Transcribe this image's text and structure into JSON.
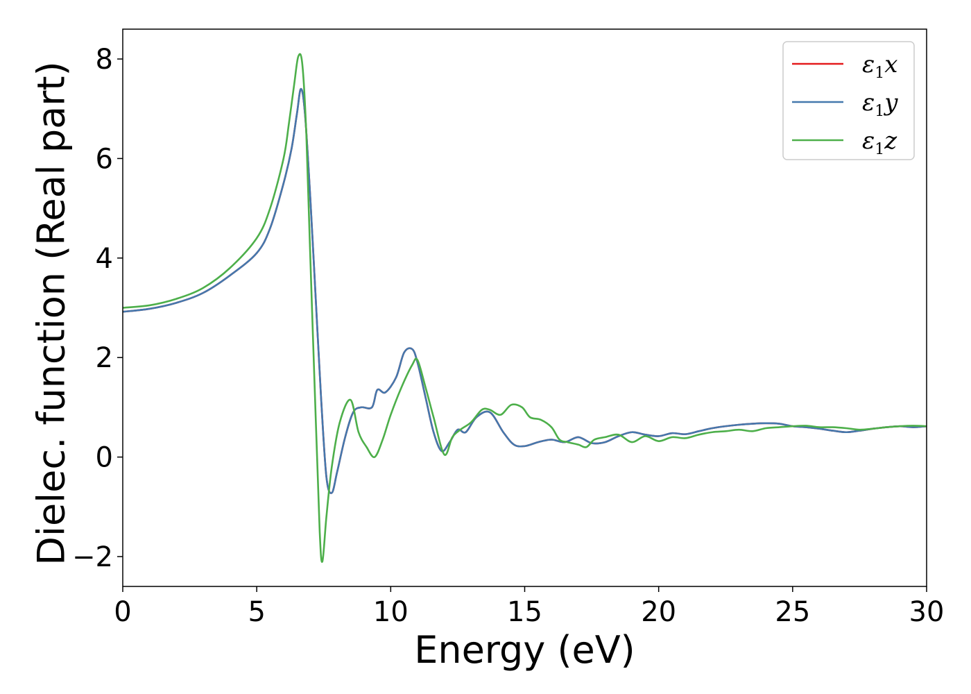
{
  "chart_data": {
    "type": "line",
    "title": "",
    "xlabel": "Energy (eV)",
    "ylabel": "Dielec. function (Real part)",
    "xlim": [
      0,
      30
    ],
    "ylim": [
      -2.6,
      8.6
    ],
    "xticks": [
      0,
      5,
      10,
      15,
      20,
      25,
      30
    ],
    "xtick_labels": [
      "0",
      "5",
      "10",
      "15",
      "20",
      "25",
      "30"
    ],
    "yticks": [
      -2,
      0,
      2,
      4,
      6,
      8
    ],
    "ytick_labels": [
      "−2",
      "0",
      "2",
      "4",
      "6",
      "8"
    ],
    "grid": false,
    "legend_position": "top-right",
    "series": [
      {
        "name": "ε₁x",
        "legend_main": "ε",
        "legend_sub": "1",
        "legend_var": "x",
        "color": "#e41a1c",
        "x": [
          0,
          1,
          2,
          3,
          4,
          5,
          5.5,
          6,
          6.3,
          6.5,
          6.65,
          6.8,
          7,
          7.2,
          7.4,
          7.6,
          7.8,
          8,
          8.3,
          8.6,
          8.9,
          9.3,
          9.5,
          9.8,
          10.2,
          10.5,
          10.8,
          11,
          11.3,
          11.6,
          11.9,
          12.2,
          12.5,
          12.8,
          13.2,
          13.7,
          14.2,
          14.6,
          15,
          15.5,
          16,
          16.5,
          17,
          17.5,
          18,
          18.5,
          19,
          19.5,
          20,
          20.5,
          21,
          21.5,
          22,
          22.5,
          23,
          23.5,
          24,
          24.5,
          25,
          25.5,
          26,
          26.5,
          27,
          27.5,
          28,
          28.5,
          29,
          29.5,
          30
        ],
        "y": [
          2.92,
          2.98,
          3.1,
          3.3,
          3.65,
          4.1,
          4.6,
          5.5,
          6.2,
          6.9,
          7.4,
          6.9,
          5.2,
          3.2,
          1.2,
          -0.4,
          -0.72,
          -0.3,
          0.4,
          0.9,
          1.0,
          1.0,
          1.35,
          1.3,
          1.6,
          2.1,
          2.17,
          1.9,
          1.2,
          0.5,
          0.12,
          0.3,
          0.55,
          0.5,
          0.8,
          0.9,
          0.5,
          0.25,
          0.22,
          0.3,
          0.35,
          0.3,
          0.4,
          0.28,
          0.3,
          0.42,
          0.5,
          0.45,
          0.42,
          0.48,
          0.46,
          0.52,
          0.58,
          0.62,
          0.65,
          0.67,
          0.68,
          0.67,
          0.62,
          0.6,
          0.57,
          0.53,
          0.5,
          0.53,
          0.57,
          0.6,
          0.62,
          0.6,
          0.62
        ]
      },
      {
        "name": "ε₁y",
        "legend_main": "ε",
        "legend_sub": "1",
        "legend_var": "y",
        "color": "#4478ad",
        "x": [
          0,
          1,
          2,
          3,
          4,
          5,
          5.5,
          6,
          6.3,
          6.5,
          6.65,
          6.8,
          7,
          7.2,
          7.4,
          7.6,
          7.8,
          8,
          8.3,
          8.6,
          8.9,
          9.3,
          9.5,
          9.8,
          10.2,
          10.5,
          10.8,
          11,
          11.3,
          11.6,
          11.9,
          12.2,
          12.5,
          12.8,
          13.2,
          13.7,
          14.2,
          14.6,
          15,
          15.5,
          16,
          16.5,
          17,
          17.5,
          18,
          18.5,
          19,
          19.5,
          20,
          20.5,
          21,
          21.5,
          22,
          22.5,
          23,
          23.5,
          24,
          24.5,
          25,
          25.5,
          26,
          26.5,
          27,
          27.5,
          28,
          28.5,
          29,
          29.5,
          30
        ],
        "y": [
          2.92,
          2.98,
          3.1,
          3.3,
          3.65,
          4.1,
          4.6,
          5.5,
          6.2,
          6.9,
          7.4,
          6.9,
          5.2,
          3.2,
          1.2,
          -0.4,
          -0.72,
          -0.3,
          0.4,
          0.9,
          1.0,
          1.0,
          1.35,
          1.3,
          1.6,
          2.1,
          2.17,
          1.9,
          1.2,
          0.5,
          0.12,
          0.3,
          0.55,
          0.5,
          0.8,
          0.9,
          0.5,
          0.25,
          0.22,
          0.3,
          0.35,
          0.3,
          0.4,
          0.28,
          0.3,
          0.42,
          0.5,
          0.45,
          0.42,
          0.48,
          0.46,
          0.52,
          0.58,
          0.62,
          0.65,
          0.67,
          0.68,
          0.67,
          0.62,
          0.6,
          0.57,
          0.53,
          0.5,
          0.53,
          0.57,
          0.6,
          0.62,
          0.6,
          0.62
        ]
      },
      {
        "name": "ε₁z",
        "legend_main": "ε",
        "legend_sub": "1",
        "legend_var": "z",
        "color": "#4daf4a",
        "x": [
          0,
          1,
          2,
          3,
          4,
          5,
          5.5,
          6,
          6.2,
          6.4,
          6.55,
          6.7,
          6.85,
          7,
          7.2,
          7.35,
          7.45,
          7.6,
          7.8,
          8.1,
          8.5,
          8.8,
          9.1,
          9.4,
          9.7,
          10,
          10.4,
          10.8,
          11,
          11.3,
          11.6,
          12,
          12.3,
          12.6,
          13,
          13.4,
          13.7,
          14.1,
          14.5,
          14.9,
          15.2,
          15.6,
          16,
          16.3,
          16.6,
          17,
          17.3,
          17.6,
          18,
          18.5,
          19,
          19.5,
          20,
          20.5,
          21,
          21.5,
          22,
          22.5,
          23,
          23.5,
          24,
          24.5,
          25,
          25.5,
          26,
          26.5,
          27,
          27.5,
          28,
          28.5,
          29,
          29.5,
          30
        ],
        "y": [
          3.0,
          3.05,
          3.18,
          3.4,
          3.8,
          4.4,
          5.0,
          6.0,
          6.7,
          7.5,
          8.05,
          7.9,
          6.5,
          4.0,
          0.8,
          -1.5,
          -2.1,
          -1.2,
          -0.2,
          0.7,
          1.15,
          0.5,
          0.2,
          0.0,
          0.35,
          0.85,
          1.4,
          1.85,
          1.95,
          1.4,
          0.8,
          0.05,
          0.4,
          0.55,
          0.7,
          0.95,
          0.95,
          0.85,
          1.05,
          1.0,
          0.8,
          0.75,
          0.6,
          0.35,
          0.3,
          0.25,
          0.2,
          0.35,
          0.4,
          0.45,
          0.3,
          0.42,
          0.32,
          0.4,
          0.38,
          0.45,
          0.5,
          0.52,
          0.55,
          0.52,
          0.58,
          0.6,
          0.62,
          0.63,
          0.6,
          0.6,
          0.58,
          0.55,
          0.57,
          0.6,
          0.62,
          0.63,
          0.62
        ]
      }
    ]
  }
}
